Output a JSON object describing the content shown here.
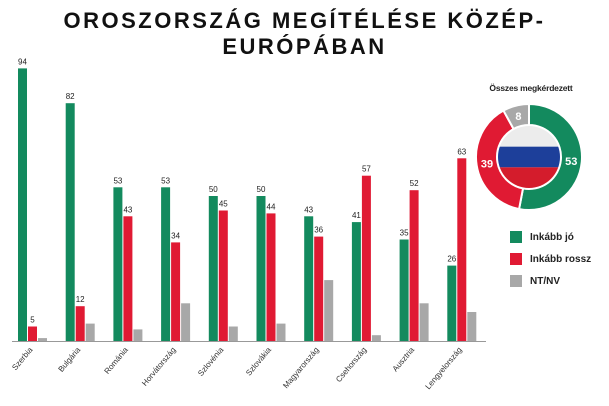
{
  "title": "OROSZORSZÁG MEGÍTÉLÉSE KÖZÉP-EURÓPÁBAN",
  "colors": {
    "good": "#138a5e",
    "bad": "#e01a33",
    "nt": "#a8a8a8"
  },
  "chart_data": [
    {
      "type": "bar",
      "categories": [
        "Szerbia",
        "Bulgária",
        "Románia",
        "Horvátország",
        "Szlovénia",
        "Szlovákia",
        "Magyarország",
        "Csehország",
        "Ausztria",
        "Lengyelország"
      ],
      "series": [
        {
          "name": "Inkább jó",
          "values": [
            94,
            82,
            53,
            53,
            50,
            50,
            43,
            41,
            35,
            26
          ]
        },
        {
          "name": "Inkább rossz",
          "values": [
            5,
            12,
            43,
            34,
            45,
            44,
            36,
            57,
            52,
            63
          ]
        },
        {
          "name": "NT/NV",
          "values": [
            1,
            6,
            4,
            13,
            5,
            6,
            21,
            2,
            13,
            10
          ]
        }
      ],
      "data_labels_series": [
        "Inkább jó",
        "Inkább rossz"
      ],
      "ylim": [
        0,
        100
      ],
      "grid": false
    },
    {
      "type": "pie",
      "title": "Összes megkérdezett",
      "labels": [
        "Inkább jó",
        "Inkább rossz",
        "NT/NV"
      ],
      "values": [
        53,
        39,
        8
      ],
      "legend_position": "right-bottom"
    }
  ],
  "legend": [
    "Inkább jó",
    "Inkább rossz",
    "NT/NV"
  ]
}
